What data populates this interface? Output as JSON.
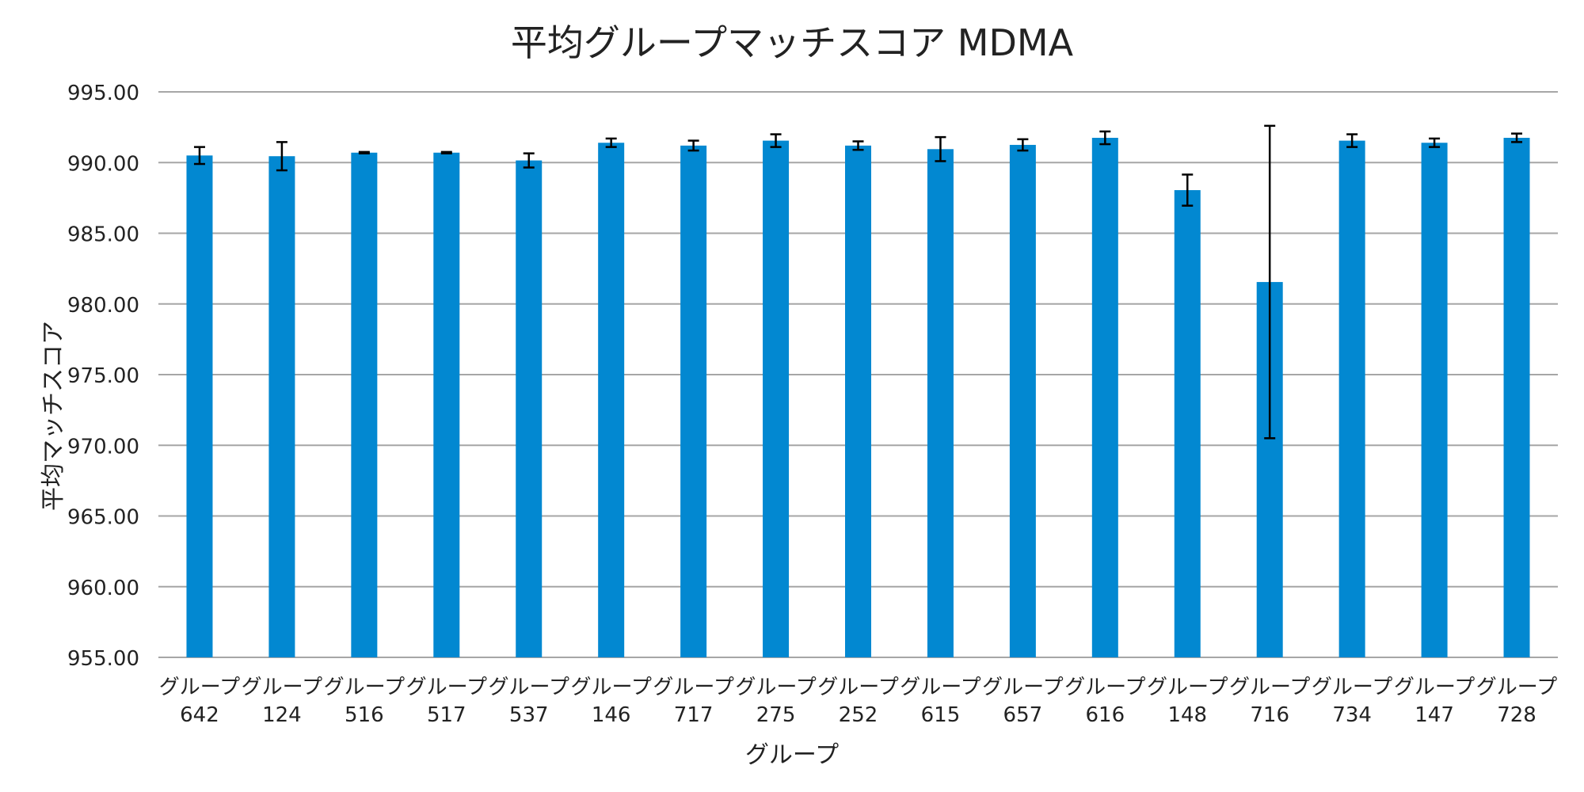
{
  "chart_data": {
    "type": "bar",
    "title": "平均グループマッチスコア MDMA",
    "xlabel": "グループ",
    "ylabel": "平均マッチスコア",
    "ylim": [
      955,
      995
    ],
    "ytick_step": 5,
    "grid": true,
    "categories": [
      [
        "グループ",
        "642"
      ],
      [
        "グループ",
        "124"
      ],
      [
        "グループ",
        "516"
      ],
      [
        "グループ",
        "517"
      ],
      [
        "グループ",
        "537"
      ],
      [
        "グループ",
        "146"
      ],
      [
        "グループ",
        "717"
      ],
      [
        "グループ",
        "275"
      ],
      [
        "グループ",
        "252"
      ],
      [
        "グループ",
        "615"
      ],
      [
        "グループ",
        "657"
      ],
      [
        "グループ",
        "616"
      ],
      [
        "グループ",
        "148"
      ],
      [
        "グループ",
        "716"
      ],
      [
        "グループ",
        "734"
      ],
      [
        "グループ",
        "147"
      ],
      [
        "グループ",
        "728"
      ]
    ],
    "values": [
      990.5,
      990.45,
      990.7,
      990.7,
      990.15,
      991.4,
      991.2,
      991.55,
      991.2,
      990.95,
      991.25,
      991.75,
      988.05,
      981.55,
      991.55,
      991.4,
      991.75
    ],
    "errors": [
      0.6,
      1.0,
      0.05,
      0.05,
      0.5,
      0.3,
      0.35,
      0.45,
      0.3,
      0.85,
      0.4,
      0.45,
      1.1,
      11.05,
      0.45,
      0.3,
      0.3
    ],
    "bar_color": "#0288D1",
    "grid_color": "#a6a6a6",
    "error_color": "#000000"
  }
}
